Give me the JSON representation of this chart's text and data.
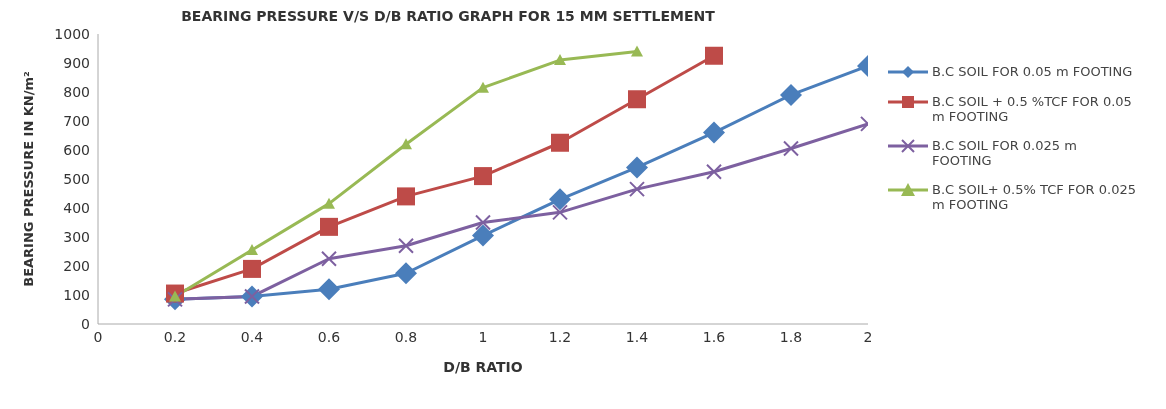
{
  "chart_data": {
    "type": "line",
    "title": "BEARING PRESSURE V/S D/B RATIO GRAPH FOR 15 MM SETTLEMENT",
    "xlabel": "D/B RATIO",
    "ylabel": "BEARING PRESSURE IN KN/m²",
    "x": [
      0.2,
      0.4,
      0.6,
      0.8,
      1.0,
      1.2,
      1.4,
      1.6,
      1.8,
      2.0
    ],
    "series": [
      {
        "name": "B.C SOIL FOR 0.05 m FOOTING",
        "color": "#4a7ebb",
        "marker": "diamond",
        "values": [
          85,
          95,
          120,
          175,
          305,
          430,
          540,
          660,
          790,
          890
        ]
      },
      {
        "name": "B.C SOIL + 0.5 %TCF FOR 0.05 m FOOTING",
        "color": "#be4b48",
        "marker": "square",
        "values": [
          105,
          190,
          335,
          440,
          510,
          625,
          775,
          925,
          null,
          null
        ]
      },
      {
        "name": "B.C SOIL FOR 0.025 m FOOTING",
        "color": "#7d60a0",
        "marker": "cross",
        "values": [
          85,
          95,
          225,
          270,
          350,
          385,
          465,
          525,
          605,
          690
        ]
      },
      {
        "name": "B.C SOIL+ 0.5% TCF FOR 0.025 m FOOTING",
        "color": "#98b954",
        "marker": "triangle",
        "values": [
          95,
          255,
          415,
          620,
          815,
          910,
          940,
          null,
          null,
          null
        ]
      }
    ],
    "xlim": [
      0,
      2
    ],
    "xticks": [
      0,
      0.2,
      0.4,
      0.6,
      0.8,
      1,
      1.2,
      1.4,
      1.6,
      1.8,
      2
    ],
    "ylim": [
      0,
      1000
    ],
    "yticks": [
      0,
      100,
      200,
      300,
      400,
      500,
      600,
      700,
      800,
      900,
      1000
    ],
    "grid": false,
    "legend": "right"
  }
}
